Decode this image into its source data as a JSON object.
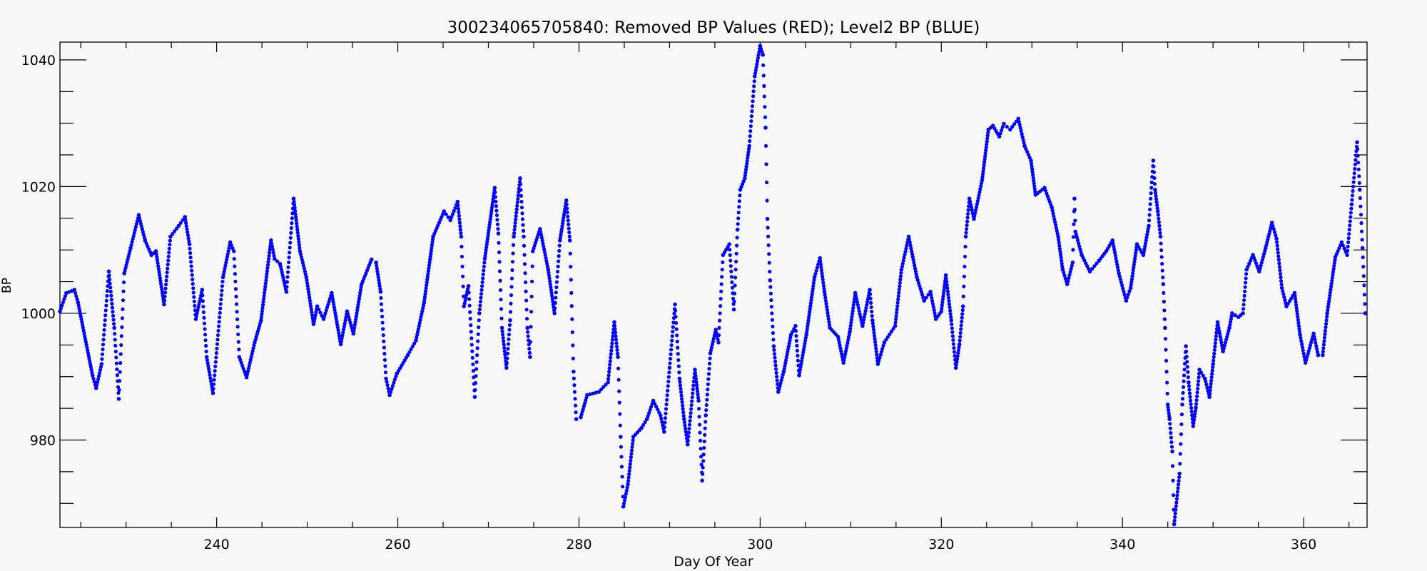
{
  "chart_data": {
    "type": "scatter",
    "title": "300234065705840: Removed BP Values (RED); Level2 BP (BLUE)",
    "xlabel": "Day Of Year",
    "ylabel": "BP",
    "xlim": [
      222.7,
      367.0
    ],
    "ylim": [
      966.2,
      1042.8
    ],
    "x_ticks": [
      240,
      260,
      280,
      300,
      320,
      340,
      360
    ],
    "x_tick_labels": [
      "240",
      "260",
      "280",
      "300",
      "320",
      "340",
      "360"
    ],
    "y_ticks": [
      980,
      1000,
      1020,
      1040
    ],
    "y_tick_labels": [
      "980",
      "1000",
      "1020",
      "1040"
    ],
    "grid": false,
    "legend": "none",
    "series": [
      {
        "color": "#0000ff",
        "marker": "dot",
        "points": [
          [
            222.7,
            1000.3
          ],
          [
            223.4,
            1003.2
          ],
          [
            224.3,
            1003.7
          ],
          [
            224.7,
            1001.7
          ],
          [
            226.3,
            990.2
          ],
          [
            226.7,
            988.2
          ],
          [
            227.3,
            992.0
          ],
          [
            228.1,
            1006.6
          ],
          [
            228.7,
            997.7
          ],
          [
            229.2,
            986.5
          ],
          [
            229.8,
            1006.3
          ],
          [
            230.5,
            1010.3
          ],
          [
            231.4,
            1015.5
          ],
          [
            232.1,
            1011.5
          ],
          [
            232.8,
            1009.2
          ],
          [
            233.3,
            1009.8
          ],
          [
            234.2,
            1001.4
          ],
          [
            234.9,
            1012.1
          ],
          [
            235.8,
            1013.8
          ],
          [
            236.5,
            1015.2
          ],
          [
            237.0,
            1010.9
          ],
          [
            237.7,
            999.1
          ],
          [
            238.4,
            1003.7
          ],
          [
            238.9,
            993.1
          ],
          [
            239.6,
            987.4
          ],
          [
            240.7,
            1005.7
          ],
          [
            241.5,
            1011.2
          ],
          [
            241.9,
            1009.8
          ],
          [
            242.5,
            993.1
          ],
          [
            243.3,
            989.9
          ],
          [
            244.2,
            995.4
          ],
          [
            244.9,
            998.9
          ],
          [
            246.0,
            1011.5
          ],
          [
            246.4,
            1008.6
          ],
          [
            247.0,
            1007.8
          ],
          [
            247.7,
            1003.4
          ],
          [
            248.5,
            1018.1
          ],
          [
            249.2,
            1009.8
          ],
          [
            249.9,
            1005.7
          ],
          [
            250.7,
            998.3
          ],
          [
            251.1,
            1001.1
          ],
          [
            251.8,
            999.1
          ],
          [
            252.7,
            1003.2
          ],
          [
            253.7,
            995.1
          ],
          [
            254.4,
            1000.3
          ],
          [
            255.1,
            996.8
          ],
          [
            256.0,
            1004.6
          ],
          [
            257.1,
            1008.5
          ],
          [
            257.6,
            1008.0
          ],
          [
            258.1,
            1003.4
          ],
          [
            258.7,
            989.7
          ],
          [
            259.1,
            987.1
          ],
          [
            259.9,
            990.5
          ],
          [
            261.1,
            993.4
          ],
          [
            262.0,
            995.7
          ],
          [
            262.9,
            1001.7
          ],
          [
            263.9,
            1012.1
          ],
          [
            265.1,
            1016.1
          ],
          [
            265.8,
            1014.7
          ],
          [
            266.6,
            1017.6
          ],
          [
            267.0,
            1012.1
          ],
          [
            267.3,
            1001.1
          ],
          [
            267.8,
            1004.3
          ],
          [
            268.5,
            986.8
          ],
          [
            269.0,
            1000.0
          ],
          [
            269.6,
            1008.6
          ],
          [
            270.7,
            1019.8
          ],
          [
            271.1,
            1012.6
          ],
          [
            271.5,
            997.7
          ],
          [
            272.0,
            991.4
          ],
          [
            272.4,
            998.9
          ],
          [
            272.8,
            1012.1
          ],
          [
            273.5,
            1021.3
          ],
          [
            273.9,
            1012.1
          ],
          [
            274.3,
            997.7
          ],
          [
            274.6,
            993.1
          ],
          [
            274.9,
            1009.8
          ],
          [
            275.7,
            1013.3
          ],
          [
            276.6,
            1006.9
          ],
          [
            277.3,
            1000.0
          ],
          [
            277.9,
            1011.5
          ],
          [
            278.6,
            1017.8
          ],
          [
            279.0,
            1011.5
          ],
          [
            279.4,
            990.8
          ],
          [
            279.7,
            983.3
          ],
          [
            280.2,
            983.6
          ],
          [
            280.9,
            987.1
          ],
          [
            282.2,
            987.6
          ],
          [
            283.2,
            989.1
          ],
          [
            283.9,
            998.6
          ],
          [
            284.3,
            993.1
          ],
          [
            284.6,
            980.5
          ],
          [
            284.9,
            969.5
          ],
          [
            285.4,
            973.0
          ],
          [
            286.0,
            980.5
          ],
          [
            286.9,
            981.9
          ],
          [
            287.5,
            983.3
          ],
          [
            288.2,
            986.2
          ],
          [
            289.0,
            983.9
          ],
          [
            289.4,
            981.3
          ],
          [
            290.0,
            991.4
          ],
          [
            290.6,
            1001.4
          ],
          [
            291.1,
            989.7
          ],
          [
            291.6,
            983.3
          ],
          [
            292.0,
            979.3
          ],
          [
            292.8,
            991.1
          ],
          [
            293.2,
            986.2
          ],
          [
            293.6,
            973.6
          ],
          [
            294.0,
            983.9
          ],
          [
            294.5,
            993.7
          ],
          [
            295.1,
            997.4
          ],
          [
            295.4,
            995.4
          ],
          [
            295.9,
            1009.2
          ],
          [
            296.6,
            1010.9
          ],
          [
            297.1,
            1000.6
          ],
          [
            297.5,
            1013.2
          ],
          [
            297.8,
            1019.5
          ],
          [
            298.3,
            1021.3
          ],
          [
            298.8,
            1026.4
          ],
          [
            299.4,
            1037.4
          ],
          [
            300.0,
            1042.2
          ],
          [
            300.3,
            1040.8
          ],
          [
            300.6,
            1029.3
          ],
          [
            300.8,
            1014.9
          ],
          [
            301.1,
            1005.2
          ],
          [
            301.5,
            994.8
          ],
          [
            302.0,
            987.6
          ],
          [
            302.6,
            990.8
          ],
          [
            303.4,
            996.6
          ],
          [
            303.9,
            998.0
          ],
          [
            304.3,
            990.2
          ],
          [
            305.1,
            996.6
          ],
          [
            306.0,
            1005.7
          ],
          [
            306.6,
            1008.7
          ],
          [
            307.1,
            1003.4
          ],
          [
            307.7,
            997.7
          ],
          [
            308.6,
            996.3
          ],
          [
            309.2,
            992.2
          ],
          [
            309.9,
            997.1
          ],
          [
            310.5,
            1003.2
          ],
          [
            311.3,
            998.0
          ],
          [
            312.1,
            1003.7
          ],
          [
            312.4,
            998.9
          ],
          [
            313.0,
            992.0
          ],
          [
            313.7,
            995.4
          ],
          [
            314.9,
            998.0
          ],
          [
            315.6,
            1006.9
          ],
          [
            316.4,
            1012.1
          ],
          [
            317.3,
            1005.7
          ],
          [
            318.1,
            1002.0
          ],
          [
            318.8,
            1003.4
          ],
          [
            319.4,
            999.1
          ],
          [
            320.0,
            1000.3
          ],
          [
            320.5,
            1006.0
          ],
          [
            321.1,
            998.9
          ],
          [
            321.6,
            991.4
          ],
          [
            322.0,
            995.1
          ],
          [
            322.4,
            1001.1
          ],
          [
            322.7,
            1012.1
          ],
          [
            323.1,
            1018.1
          ],
          [
            323.6,
            1014.9
          ],
          [
            324.5,
            1021.0
          ],
          [
            325.2,
            1029.0
          ],
          [
            325.7,
            1029.6
          ],
          [
            326.4,
            1027.9
          ],
          [
            326.9,
            1029.9
          ],
          [
            327.6,
            1029.0
          ],
          [
            328.5,
            1030.7
          ],
          [
            329.2,
            1026.4
          ],
          [
            329.9,
            1024.1
          ],
          [
            330.4,
            1018.7
          ],
          [
            331.4,
            1019.8
          ],
          [
            332.2,
            1016.7
          ],
          [
            332.9,
            1012.1
          ],
          [
            333.4,
            1006.9
          ],
          [
            333.9,
            1004.6
          ],
          [
            334.5,
            1008.0
          ],
          [
            334.7,
            1018.1
          ],
          [
            334.8,
            1012.9
          ],
          [
            335.5,
            1009.2
          ],
          [
            336.4,
            1006.6
          ],
          [
            337.4,
            1008.3
          ],
          [
            338.2,
            1009.8
          ],
          [
            338.9,
            1011.5
          ],
          [
            339.6,
            1006.3
          ],
          [
            340.4,
            1002.0
          ],
          [
            340.9,
            1004.0
          ],
          [
            341.6,
            1010.9
          ],
          [
            342.3,
            1009.2
          ],
          [
            342.9,
            1013.8
          ],
          [
            343.4,
            1024.1
          ],
          [
            343.6,
            1019.5
          ],
          [
            343.9,
            1016.1
          ],
          [
            344.2,
            1012.1
          ],
          [
            344.5,
            1004.6
          ],
          [
            344.7,
            997.7
          ],
          [
            345.0,
            985.6
          ],
          [
            345.2,
            983.3
          ],
          [
            345.5,
            978.2
          ],
          [
            345.7,
            966.7
          ],
          [
            346.3,
            974.7
          ],
          [
            346.6,
            985.6
          ],
          [
            347.0,
            994.8
          ],
          [
            347.3,
            989.1
          ],
          [
            347.8,
            982.2
          ],
          [
            348.1,
            985.1
          ],
          [
            348.5,
            991.1
          ],
          [
            349.1,
            989.7
          ],
          [
            349.6,
            986.8
          ],
          [
            350.0,
            992.0
          ],
          [
            350.5,
            998.6
          ],
          [
            351.1,
            994.0
          ],
          [
            351.8,
            997.7
          ],
          [
            352.1,
            1000.0
          ],
          [
            352.8,
            999.4
          ],
          [
            353.3,
            1000.0
          ],
          [
            353.7,
            1006.9
          ],
          [
            354.4,
            1009.2
          ],
          [
            355.1,
            1006.6
          ],
          [
            355.8,
            1010.3
          ],
          [
            356.5,
            1014.3
          ],
          [
            357.0,
            1011.8
          ],
          [
            357.6,
            1004.0
          ],
          [
            358.1,
            1001.1
          ],
          [
            359.0,
            1003.2
          ],
          [
            359.6,
            996.6
          ],
          [
            360.2,
            992.2
          ],
          [
            361.1,
            996.8
          ],
          [
            361.6,
            993.4
          ],
          [
            362.1,
            993.4
          ],
          [
            362.6,
            1000.0
          ],
          [
            363.5,
            1008.9
          ],
          [
            364.2,
            1011.2
          ],
          [
            364.8,
            1009.2
          ],
          [
            365.3,
            1017.2
          ],
          [
            365.9,
            1027.0
          ],
          [
            366.2,
            1019.5
          ],
          [
            366.5,
            1010.3
          ],
          [
            366.8,
            1000.0
          ]
        ]
      }
    ]
  }
}
